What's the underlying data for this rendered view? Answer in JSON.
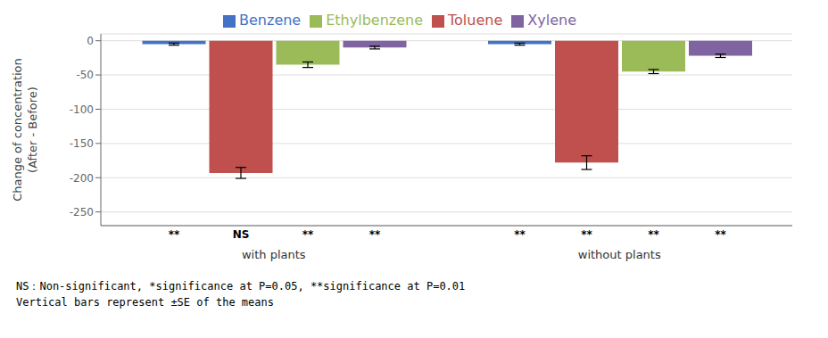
{
  "chart_data": {
    "type": "bar",
    "categories": [
      "with plants",
      "without plants"
    ],
    "ylabel": "Change of concentration\n(After - Before)",
    "series": [
      {
        "name": "Benzene",
        "color": "#4472C4",
        "values": [
          -5,
          -5
        ],
        "errors": [
          1.5,
          1.5
        ],
        "significance": [
          "**",
          "**"
        ]
      },
      {
        "name": "Toluene",
        "color": "#C0504D",
        "values": [
          -193,
          -178
        ],
        "errors": [
          8,
          10
        ],
        "significance": [
          "NS",
          "**"
        ]
      },
      {
        "name": "Ethylbenzene",
        "color": "#9BBB59",
        "values": [
          -35,
          -45
        ],
        "errors": [
          4,
          3
        ],
        "significance": [
          "**",
          "**"
        ]
      },
      {
        "name": "Xylene",
        "color": "#8064A2",
        "values": [
          -10,
          -22
        ],
        "errors": [
          2,
          2.5
        ],
        "significance": [
          "**",
          "**"
        ]
      }
    ],
    "ylim": [
      -270,
      10
    ],
    "yticks": [
      0,
      -50,
      -100,
      -150,
      -200,
      -250
    ],
    "grid": true,
    "legend": "top",
    "annotations": [
      "NS：Non-significant, *significance at P=0.05, **significance at P=0.01",
      "Vertical bars represent ±SE of the means"
    ]
  }
}
